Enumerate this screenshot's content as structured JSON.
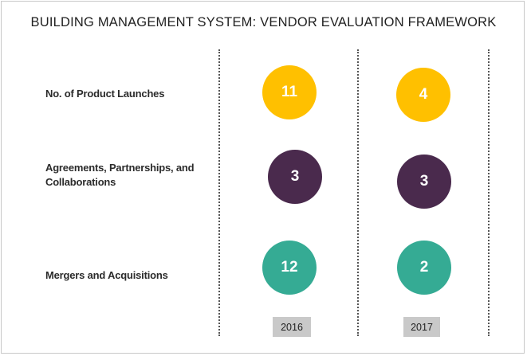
{
  "chart_data": {
    "type": "table",
    "title": "BUILDING MANAGEMENT SYSTEM: VENDOR EVALUATION FRAMEWORK",
    "columns": [
      "2016",
      "2017"
    ],
    "rows": [
      {
        "label": "No. of Product Launches",
        "values": [
          11,
          4
        ],
        "color": "#ffc000"
      },
      {
        "label": "Agreements, Partnerships, and Collaborations",
        "values": [
          3,
          3
        ],
        "color": "#4a2a4d"
      },
      {
        "label": "Mergers and Acquisitions",
        "values": [
          12,
          2
        ],
        "color": "#35ab94"
      }
    ]
  }
}
